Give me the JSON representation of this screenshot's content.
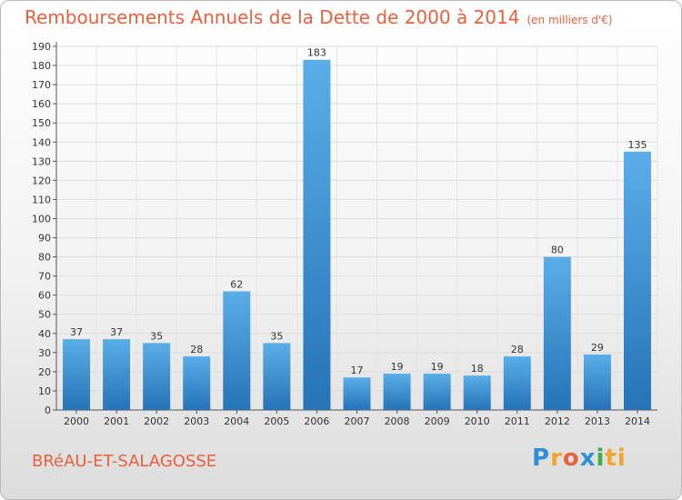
{
  "header": {
    "title": "Remboursements Annuels de la Dette de 2000 à 2014",
    "unit": "(en milliers d'€)"
  },
  "footer": {
    "commune": "BRéAU-ET-SALAGOSSE",
    "logo_letters": [
      "P",
      "r",
      "o",
      "x",
      "i",
      "ti"
    ]
  },
  "colors": {
    "title": "#e8603c",
    "bar_light": "#5aaee8",
    "bar_dark": "#2673b8"
  },
  "chart_data": {
    "type": "bar",
    "title": "Remboursements Annuels de la Dette de 2000 à 2014",
    "subtitle": "(en milliers d'€)",
    "xlabel": "",
    "ylabel": "",
    "categories": [
      "2000",
      "2001",
      "2002",
      "2003",
      "2004",
      "2005",
      "2006",
      "2007",
      "2008",
      "2009",
      "2010",
      "2011",
      "2012",
      "2013",
      "2014"
    ],
    "values": [
      37,
      37,
      35,
      28,
      62,
      35,
      183,
      17,
      19,
      19,
      18,
      28,
      80,
      29,
      135
    ],
    "ylim": [
      0,
      190
    ],
    "yticks": [
      0,
      10,
      20,
      30,
      40,
      50,
      60,
      70,
      80,
      90,
      100,
      110,
      120,
      130,
      140,
      150,
      160,
      170,
      180,
      190
    ],
    "grid": true,
    "data_labels": true
  }
}
